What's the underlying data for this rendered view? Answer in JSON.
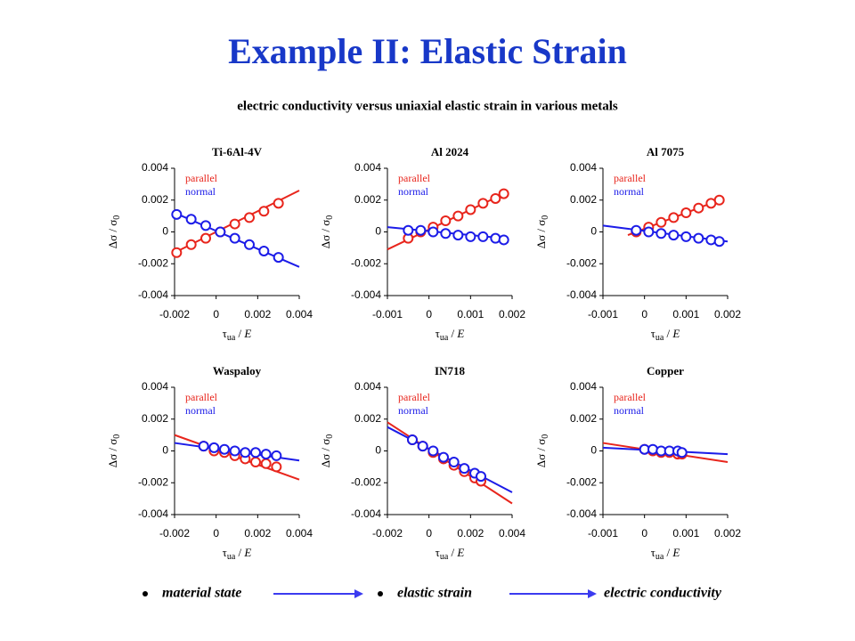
{
  "header": {
    "title": "Example II: Elastic Strain",
    "subtitle": "electric conductivity versus uniaxial elastic strain in various metals"
  },
  "footer": {
    "items": [
      "material state",
      "elastic strain",
      "electric conductivity"
    ]
  },
  "chart_data": [
    {
      "type": "scatter",
      "title": "Ti-6Al-4V",
      "xlabel": [
        "τ",
        "ua",
        " / ",
        "E"
      ],
      "ylabel": [
        "Δσ / σ",
        "0"
      ],
      "xlim": [
        -0.002,
        0.004
      ],
      "xticks": [
        -0.002,
        0,
        0.002,
        0.004
      ],
      "ylim": [
        -0.004,
        0.004
      ],
      "yticks": [
        -0.004,
        -0.002,
        0,
        0.002,
        0.004
      ],
      "x": [
        -0.0019,
        -0.0012,
        -0.0005,
        0.0002,
        0.0009,
        0.0016,
        0.0023,
        0.003
      ],
      "series": [
        {
          "name": "parallel",
          "color": "#e8251c",
          "values": [
            -0.0013,
            -0.0008,
            -0.0004,
            0.0,
            0.0005,
            0.0009,
            0.0013,
            0.0018
          ],
          "fit_x": [
            -0.002,
            0.004
          ],
          "fit_y": [
            -0.0013,
            0.0026
          ]
        },
        {
          "name": "normal",
          "color": "#1c1ce8",
          "values": [
            0.0011,
            0.0008,
            0.0004,
            0.0,
            -0.0004,
            -0.0008,
            -0.0012,
            -0.0016
          ],
          "fit_x": [
            -0.002,
            0.004
          ],
          "fit_y": [
            0.0012,
            -0.0022
          ]
        }
      ]
    },
    {
      "type": "scatter",
      "title": "Al 2024",
      "xlabel": [
        "τ",
        "ua",
        " / ",
        "E"
      ],
      "ylabel": [
        "Δσ / σ",
        "0"
      ],
      "xlim": [
        -0.001,
        0.002
      ],
      "xticks": [
        -0.001,
        0,
        0.001,
        0.002
      ],
      "ylim": [
        -0.004,
        0.004
      ],
      "yticks": [
        -0.004,
        -0.002,
        0,
        0.002,
        0.004
      ],
      "x": [
        -0.0005,
        -0.0002,
        0.0001,
        0.0004,
        0.0007,
        0.001,
        0.0013,
        0.0016,
        0.0018
      ],
      "series": [
        {
          "name": "parallel",
          "color": "#e8251c",
          "values": [
            -0.0004,
            0.0,
            0.0003,
            0.0007,
            0.001,
            0.0014,
            0.0018,
            0.0021,
            0.0024
          ],
          "fit_x": [
            -0.001,
            0.0018
          ],
          "fit_y": [
            -0.0011,
            0.0024
          ]
        },
        {
          "name": "normal",
          "color": "#1c1ce8",
          "values": [
            0.0001,
            0.0001,
            0.0,
            -0.0001,
            -0.0002,
            -0.0003,
            -0.0003,
            -0.0004,
            -0.0005
          ],
          "fit_x": [
            -0.001,
            0.0018
          ],
          "fit_y": [
            0.0003,
            -0.0004
          ]
        }
      ]
    },
    {
      "type": "scatter",
      "title": "Al 7075",
      "xlabel": [
        "τ",
        "ua",
        " / ",
        "E"
      ],
      "ylabel": [
        "Δσ / σ",
        "0"
      ],
      "xlim": [
        -0.001,
        0.002
      ],
      "xticks": [
        -0.001,
        0,
        0.001,
        0.002
      ],
      "ylim": [
        -0.004,
        0.004
      ],
      "yticks": [
        -0.004,
        -0.002,
        0,
        0.002,
        0.004
      ],
      "x": [
        -0.0002,
        0.0001,
        0.0004,
        0.0007,
        0.001,
        0.0013,
        0.0016,
        0.0018
      ],
      "series": [
        {
          "name": "parallel",
          "color": "#e8251c",
          "values": [
            0.0,
            0.0003,
            0.0006,
            0.0009,
            0.0012,
            0.0015,
            0.0018,
            0.002
          ],
          "fit_x": [
            -0.0004,
            0.0018
          ],
          "fit_y": [
            -0.0002,
            0.002
          ]
        },
        {
          "name": "normal",
          "color": "#1c1ce8",
          "values": [
            0.0001,
            0.0,
            -0.0001,
            -0.0002,
            -0.0003,
            -0.0004,
            -0.0005,
            -0.0006
          ],
          "fit_x": [
            -0.001,
            0.002
          ],
          "fit_y": [
            0.0004,
            -0.0006
          ]
        }
      ]
    },
    {
      "type": "scatter",
      "title": "Waspaloy",
      "xlabel": [
        "τ",
        "ua",
        " / ",
        "E"
      ],
      "ylabel": [
        "Δσ / σ",
        "0"
      ],
      "xlim": [
        -0.002,
        0.004
      ],
      "xticks": [
        -0.002,
        0,
        0.002,
        0.004
      ],
      "ylim": [
        -0.004,
        0.004
      ],
      "yticks": [
        -0.004,
        -0.002,
        0,
        0.002,
        0.004
      ],
      "x": [
        -0.0006,
        -0.0001,
        0.0004,
        0.0009,
        0.0014,
        0.0019,
        0.0024,
        0.0029
      ],
      "series": [
        {
          "name": "parallel",
          "color": "#e8251c",
          "values": [
            0.0003,
            0.0,
            -0.0001,
            -0.0003,
            -0.0005,
            -0.0007,
            -0.0008,
            -0.001
          ],
          "fit_x": [
            -0.002,
            0.004
          ],
          "fit_y": [
            0.001,
            -0.0018
          ]
        },
        {
          "name": "normal",
          "color": "#1c1ce8",
          "values": [
            0.0003,
            0.0002,
            0.0001,
            0.0,
            -0.0001,
            -0.0001,
            -0.0002,
            -0.0003
          ],
          "fit_x": [
            -0.002,
            0.004
          ],
          "fit_y": [
            0.0005,
            -0.0006
          ]
        }
      ]
    },
    {
      "type": "scatter",
      "title": "IN718",
      "xlabel": [
        "τ",
        "ua",
        " / ",
        "E"
      ],
      "ylabel": [
        "Δσ / σ",
        "0"
      ],
      "xlim": [
        -0.002,
        0.004
      ],
      "xticks": [
        -0.002,
        0,
        0.002,
        0.004
      ],
      "ylim": [
        -0.004,
        0.004
      ],
      "yticks": [
        -0.004,
        -0.002,
        0,
        0.002,
        0.004
      ],
      "x": [
        -0.0008,
        -0.0003,
        0.0002,
        0.0007,
        0.0012,
        0.0017,
        0.0022,
        0.0025
      ],
      "series": [
        {
          "name": "parallel",
          "color": "#e8251c",
          "values": [
            0.0007,
            0.0003,
            -0.0001,
            -0.0005,
            -0.0009,
            -0.0013,
            -0.0017,
            -0.0019
          ],
          "fit_x": [
            -0.002,
            0.004
          ],
          "fit_y": [
            0.0018,
            -0.0033
          ]
        },
        {
          "name": "normal",
          "color": "#1c1ce8",
          "values": [
            0.0007,
            0.0003,
            0.0,
            -0.0004,
            -0.0007,
            -0.0011,
            -0.0014,
            -0.0016
          ],
          "fit_x": [
            -0.002,
            0.004
          ],
          "fit_y": [
            0.0015,
            -0.0026
          ]
        }
      ]
    },
    {
      "type": "scatter",
      "title": "Copper",
      "xlabel": [
        "τ",
        "ua",
        " / ",
        "E"
      ],
      "ylabel": [
        "Δσ / σ",
        "0"
      ],
      "xlim": [
        -0.001,
        0.002
      ],
      "xticks": [
        -0.001,
        0,
        0.001,
        0.002
      ],
      "ylim": [
        -0.004,
        0.004
      ],
      "yticks": [
        -0.004,
        -0.002,
        0,
        0.002,
        0.004
      ],
      "x": [
        0,
        0.0002,
        0.0004,
        0.0006,
        0.0008,
        0.0009
      ],
      "series": [
        {
          "name": "parallel",
          "color": "#e8251c",
          "values": [
            0.0001,
            0.0,
            -0.0001,
            -0.0001,
            -0.0002,
            -0.0002
          ],
          "fit_x": [
            -0.001,
            0.002
          ],
          "fit_y": [
            0.0005,
            -0.0007
          ]
        },
        {
          "name": "normal",
          "color": "#1c1ce8",
          "values": [
            0.0001,
            0.0001,
            0.0,
            0.0,
            0.0,
            -0.0001
          ],
          "fit_x": [
            -0.001,
            0.002
          ],
          "fit_y": [
            0.0002,
            -0.0002
          ]
        }
      ]
    }
  ]
}
